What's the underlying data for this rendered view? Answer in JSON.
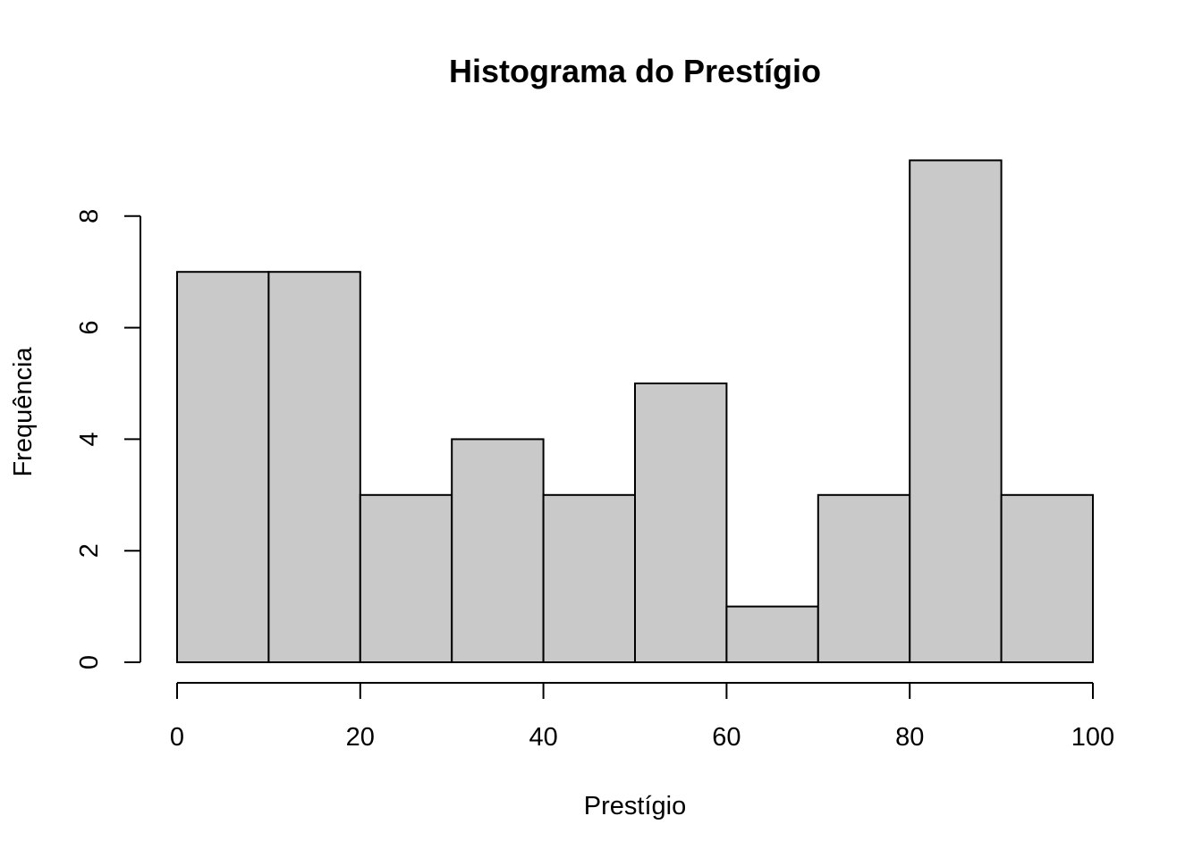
{
  "chart_data": {
    "type": "bar",
    "subtype": "histogram",
    "title": "Histograma do Prestígio",
    "xlabel": "Prestígio",
    "ylabel": "Frequência",
    "bins": [
      {
        "start": 0,
        "end": 10,
        "count": 7
      },
      {
        "start": 10,
        "end": 20,
        "count": 7
      },
      {
        "start": 20,
        "end": 30,
        "count": 3
      },
      {
        "start": 30,
        "end": 40,
        "count": 4
      },
      {
        "start": 40,
        "end": 50,
        "count": 3
      },
      {
        "start": 50,
        "end": 60,
        "count": 5
      },
      {
        "start": 60,
        "end": 70,
        "count": 1
      },
      {
        "start": 70,
        "end": 80,
        "count": 3
      },
      {
        "start": 80,
        "end": 90,
        "count": 9
      },
      {
        "start": 90,
        "end": 100,
        "count": 3
      }
    ],
    "xlim": [
      0,
      100
    ],
    "ylim": [
      0,
      9
    ],
    "x_ticks": [
      0,
      20,
      40,
      60,
      80,
      100
    ],
    "y_ticks": [
      0,
      2,
      4,
      6,
      8
    ],
    "bar_color": "#c9c9c9",
    "grid": false
  }
}
